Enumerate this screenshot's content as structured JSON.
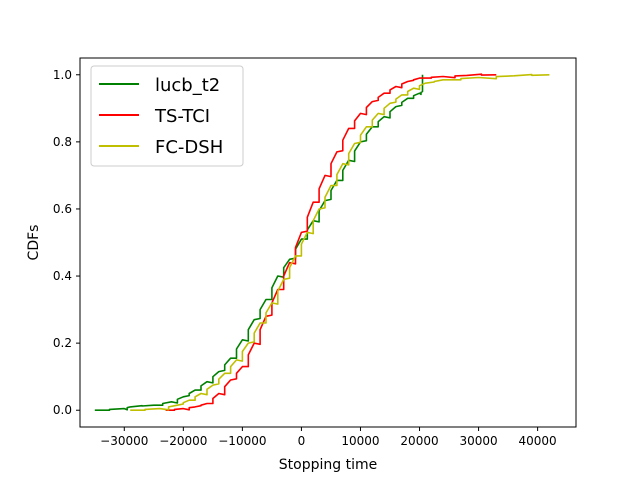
{
  "chart_data": {
    "type": "line",
    "title": "",
    "xlabel": "Stopping time",
    "ylabel": "CDFs",
    "xlim": [
      -37500,
      46500
    ],
    "ylim": [
      -0.05,
      1.05
    ],
    "xticks": [
      -30000,
      -20000,
      -10000,
      0,
      10000,
      20000,
      30000,
      40000
    ],
    "xtick_labels": [
      "−30000",
      "−20000",
      "−10000",
      "0",
      "10000",
      "20000",
      "30000",
      "40000"
    ],
    "yticks": [
      0.0,
      0.2,
      0.4,
      0.6,
      0.8,
      1.0
    ],
    "ytick_labels": [
      "0.0",
      "0.2",
      "0.4",
      "0.6",
      "0.8",
      "1.0"
    ],
    "grid": false,
    "legend_position": "top-left",
    "series": [
      {
        "name": "lucb_t2",
        "color": "#008000",
        "x": [
          -35000,
          -30000,
          -29000,
          -25000,
          -22000,
          -20000,
          -18000,
          -16000,
          -14000,
          -12000,
          -10000,
          -8000,
          -6000,
          -4000,
          -2000,
          0,
          2000,
          4000,
          6000,
          8000,
          10000,
          12000,
          14000,
          16000,
          18000,
          20000,
          20500,
          20500
        ],
        "y": [
          0.0,
          0.005,
          0.01,
          0.015,
          0.025,
          0.04,
          0.06,
          0.085,
          0.115,
          0.155,
          0.21,
          0.27,
          0.33,
          0.4,
          0.45,
          0.51,
          0.565,
          0.625,
          0.685,
          0.745,
          0.8,
          0.845,
          0.875,
          0.905,
          0.93,
          0.945,
          0.95,
          1.0
        ]
      },
      {
        "name": "TS-TCI",
        "color": "#ff0000",
        "x": [
          -23000,
          -20000,
          -18000,
          -16000,
          -14000,
          -12000,
          -10000,
          -8000,
          -6000,
          -4000,
          -2000,
          0,
          2000,
          4000,
          6000,
          8000,
          10000,
          12000,
          14000,
          16000,
          18000,
          20000,
          24000,
          28000,
          33000
        ],
        "y": [
          0.0,
          0.005,
          0.01,
          0.02,
          0.05,
          0.09,
          0.13,
          0.2,
          0.28,
          0.36,
          0.44,
          0.53,
          0.62,
          0.7,
          0.77,
          0.84,
          0.885,
          0.92,
          0.945,
          0.965,
          0.98,
          0.99,
          0.995,
          0.998,
          1.0
        ]
      },
      {
        "name": "FC-DSH",
        "color": "#bfbf00",
        "x": [
          -29000,
          -24000,
          -21000,
          -19000,
          -17000,
          -15000,
          -13000,
          -11000,
          -9000,
          -7000,
          -5000,
          -3000,
          -1000,
          1000,
          3000,
          5000,
          7000,
          9000,
          11000,
          13000,
          15000,
          17000,
          19000,
          21000,
          24000,
          30000,
          36000,
          42000
        ],
        "y": [
          0.0,
          0.005,
          0.015,
          0.03,
          0.05,
          0.075,
          0.11,
          0.15,
          0.2,
          0.26,
          0.32,
          0.39,
          0.46,
          0.53,
          0.6,
          0.67,
          0.735,
          0.795,
          0.845,
          0.885,
          0.915,
          0.94,
          0.96,
          0.975,
          0.985,
          0.992,
          0.997,
          1.0
        ]
      }
    ]
  }
}
